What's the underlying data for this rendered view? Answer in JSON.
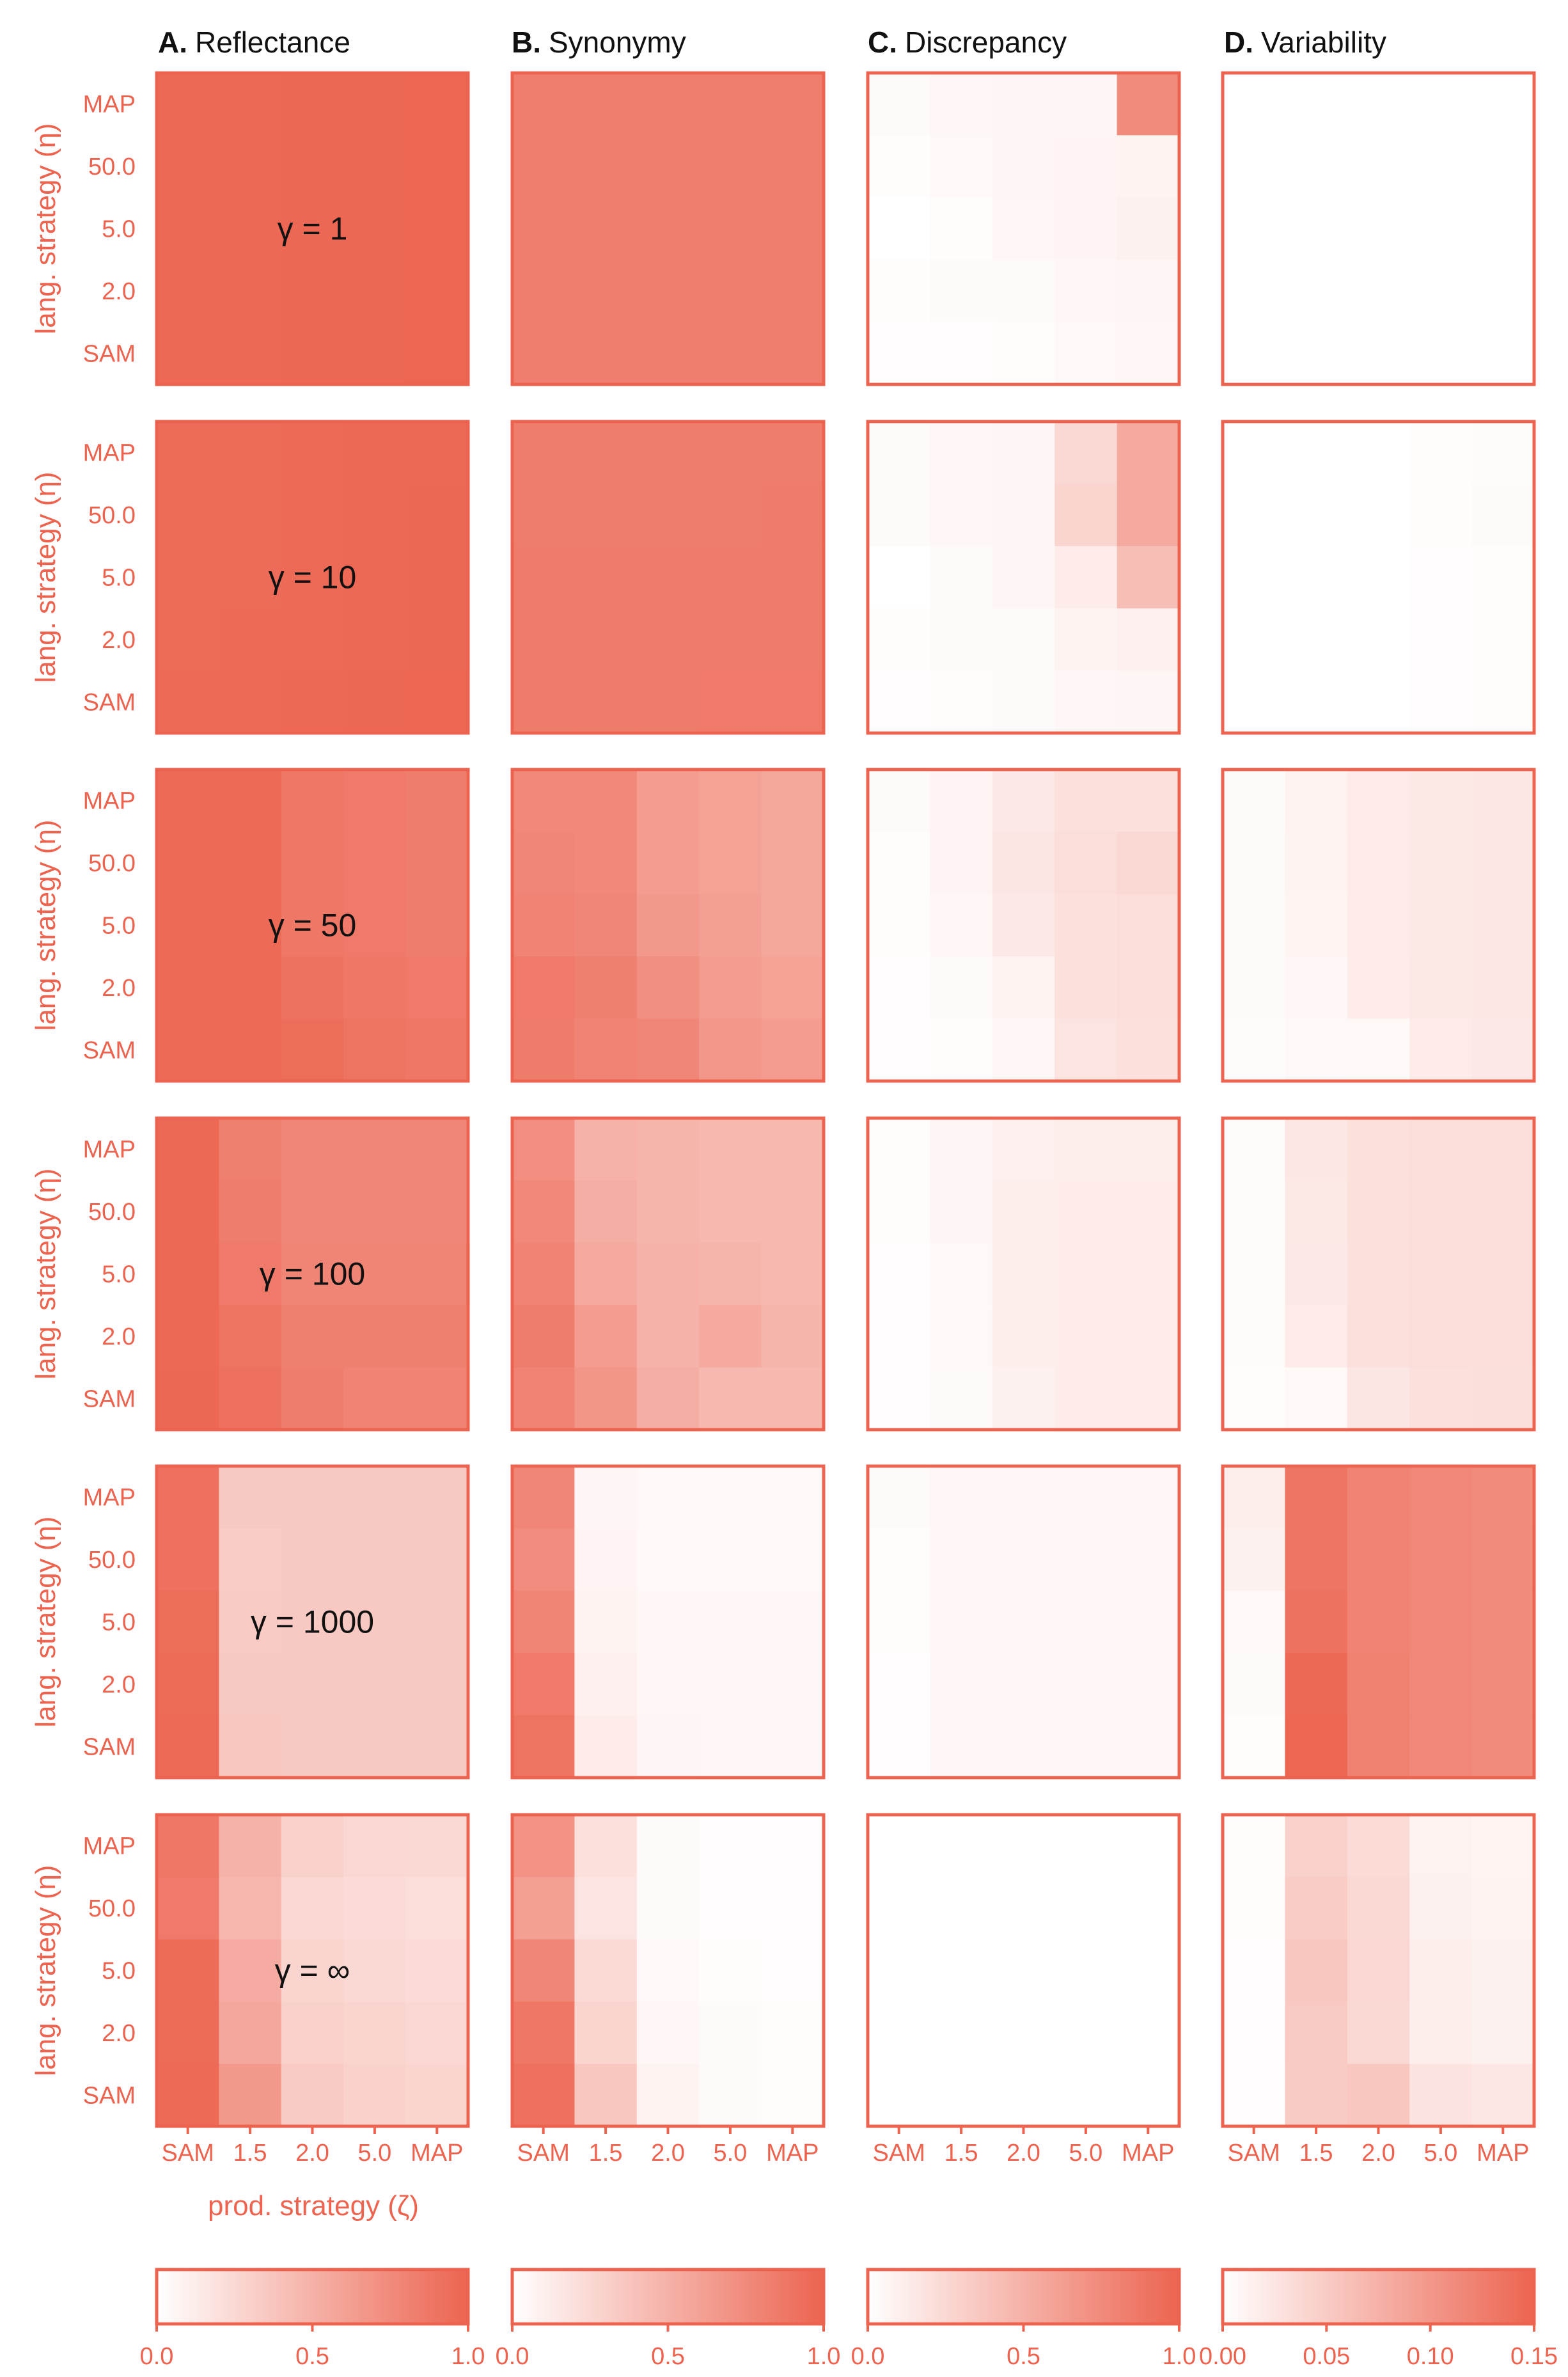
{
  "colors": {
    "accent": "#ec6450",
    "text": "#111111",
    "background": "#ffffff"
  },
  "chart_data": {
    "type": "heatmap",
    "columns": [
      {
        "letter": "A.",
        "title": "Reflectance",
        "vmin": 0,
        "vmax": 1,
        "colorbar_ticks": [
          "0.0",
          "0.5",
          "1.0"
        ]
      },
      {
        "letter": "B.",
        "title": "Synonymy",
        "vmin": 0,
        "vmax": 1,
        "colorbar_ticks": [
          "0.0",
          "0.5",
          "1.0"
        ]
      },
      {
        "letter": "C.",
        "title": "Discrepancy",
        "vmin": 0,
        "vmax": 1,
        "colorbar_ticks": [
          "0.0",
          "0.5",
          "1.0"
        ]
      },
      {
        "letter": "D.",
        "title": "Variability",
        "vmin": 0,
        "vmax": 0.15,
        "colorbar_ticks": [
          "0.00",
          "0.05",
          "0.10",
          "0.15"
        ]
      }
    ],
    "rows": [
      {
        "gamma_label": "γ = 1"
      },
      {
        "gamma_label": "γ = 10"
      },
      {
        "gamma_label": "γ = 50"
      },
      {
        "gamma_label": "γ = 100"
      },
      {
        "gamma_label": "γ = 1000"
      },
      {
        "gamma_label": "γ = ∞"
      }
    ],
    "y_ticks": [
      "MAP",
      "50.0",
      "5.0",
      "2.0",
      "SAM"
    ],
    "x_ticks": [
      "SAM",
      "1.5",
      "2.0",
      "5.0",
      "MAP"
    ],
    "ylabel": "lang. strategy (η)",
    "xlabel": "prod. strategy (ζ)",
    "values": [
      [
        [
          [
            0.97,
            0.97,
            0.98,
            0.98,
            0.99
          ],
          [
            0.97,
            0.97,
            0.98,
            0.98,
            0.99
          ],
          [
            0.97,
            0.97,
            0.98,
            0.98,
            0.99
          ],
          [
            0.97,
            0.97,
            0.98,
            0.98,
            0.99
          ],
          [
            0.97,
            0.97,
            0.98,
            0.98,
            0.99
          ]
        ],
        [
          [
            0.83,
            0.83,
            0.83,
            0.83,
            0.83
          ],
          [
            0.83,
            0.83,
            0.83,
            0.83,
            0.83
          ],
          [
            0.83,
            0.83,
            0.83,
            0.83,
            0.83
          ],
          [
            0.83,
            0.83,
            0.83,
            0.83,
            0.83
          ],
          [
            0.83,
            0.83,
            0.83,
            0.83,
            0.83
          ]
        ],
        [
          [
            0.03,
            0.05,
            0.06,
            0.06,
            0.75
          ],
          [
            0.02,
            0.04,
            0.06,
            0.07,
            0.08
          ],
          [
            0.0,
            0.02,
            0.05,
            0.07,
            0.09
          ],
          [
            0.02,
            0.03,
            0.03,
            0.05,
            0.06
          ],
          [
            0.01,
            0.01,
            0.02,
            0.04,
            0.05
          ]
        ],
        [
          [
            0,
            0,
            0,
            0,
            0
          ],
          [
            0,
            0,
            0,
            0,
            0
          ],
          [
            0,
            0,
            0,
            0,
            0
          ],
          [
            0,
            0,
            0,
            0,
            0
          ],
          [
            0,
            0,
            0,
            0,
            0
          ]
        ]
      ],
      [
        [
          [
            0.95,
            0.95,
            0.96,
            0.97,
            0.97
          ],
          [
            0.95,
            0.95,
            0.96,
            0.97,
            0.98
          ],
          [
            0.95,
            0.95,
            0.96,
            0.97,
            0.98
          ],
          [
            0.95,
            0.96,
            0.96,
            0.97,
            0.98
          ],
          [
            0.96,
            0.96,
            0.97,
            0.98,
            0.99
          ]
        ],
        [
          [
            0.84,
            0.84,
            0.84,
            0.84,
            0.84
          ],
          [
            0.84,
            0.84,
            0.84,
            0.84,
            0.85
          ],
          [
            0.85,
            0.85,
            0.85,
            0.85,
            0.85
          ],
          [
            0.85,
            0.85,
            0.85,
            0.85,
            0.85
          ],
          [
            0.85,
            0.85,
            0.85,
            0.86,
            0.86
          ]
        ],
        [
          [
            0.03,
            0.05,
            0.06,
            0.25,
            0.55
          ],
          [
            0.03,
            0.05,
            0.06,
            0.27,
            0.55
          ],
          [
            0.0,
            0.03,
            0.06,
            0.12,
            0.42
          ],
          [
            0.02,
            0.03,
            0.03,
            0.08,
            0.1
          ],
          [
            0.01,
            0.02,
            0.03,
            0.05,
            0.06
          ]
        ],
        [
          [
            0.0,
            0.0,
            0.0,
            0.003,
            0.004
          ],
          [
            0.0,
            0.0,
            0.0,
            0.003,
            0.005
          ],
          [
            0.0,
            0.0,
            0.0,
            0.002,
            0.003
          ],
          [
            0.0,
            0.0,
            0.0,
            0.002,
            0.003
          ],
          [
            0.0,
            0.0,
            0.0,
            0.002,
            0.003
          ]
        ]
      ],
      [
        [
          [
            0.96,
            0.96,
            0.88,
            0.86,
            0.84
          ],
          [
            0.96,
            0.96,
            0.88,
            0.86,
            0.84
          ],
          [
            0.96,
            0.96,
            0.88,
            0.86,
            0.84
          ],
          [
            0.96,
            0.96,
            0.91,
            0.88,
            0.86
          ],
          [
            0.96,
            0.96,
            0.94,
            0.9,
            0.88
          ]
        ],
        [
          [
            0.76,
            0.76,
            0.64,
            0.6,
            0.57
          ],
          [
            0.78,
            0.76,
            0.64,
            0.6,
            0.57
          ],
          [
            0.8,
            0.78,
            0.66,
            0.62,
            0.57
          ],
          [
            0.86,
            0.82,
            0.72,
            0.64,
            0.6
          ],
          [
            0.85,
            0.8,
            0.78,
            0.67,
            0.64
          ]
        ],
        [
          [
            0.03,
            0.07,
            0.14,
            0.2,
            0.2
          ],
          [
            0.02,
            0.07,
            0.16,
            0.22,
            0.25
          ],
          [
            0.02,
            0.05,
            0.14,
            0.2,
            0.22
          ],
          [
            0.01,
            0.03,
            0.08,
            0.2,
            0.22
          ],
          [
            0.01,
            0.02,
            0.05,
            0.17,
            0.2
          ]
        ],
        [
          [
            0.005,
            0.013,
            0.019,
            0.022,
            0.023
          ],
          [
            0.005,
            0.012,
            0.019,
            0.022,
            0.023
          ],
          [
            0.005,
            0.01,
            0.019,
            0.022,
            0.023
          ],
          [
            0.005,
            0.008,
            0.018,
            0.022,
            0.023
          ],
          [
            0.004,
            0.006,
            0.007,
            0.019,
            0.021
          ]
        ]
      ],
      [
        [
          [
            0.97,
            0.82,
            0.78,
            0.78,
            0.78
          ],
          [
            0.97,
            0.84,
            0.78,
            0.78,
            0.78
          ],
          [
            0.97,
            0.86,
            0.79,
            0.79,
            0.79
          ],
          [
            0.97,
            0.9,
            0.82,
            0.82,
            0.82
          ],
          [
            0.98,
            0.92,
            0.84,
            0.8,
            0.8
          ]
        ],
        [
          [
            0.73,
            0.5,
            0.48,
            0.46,
            0.45
          ],
          [
            0.76,
            0.52,
            0.48,
            0.46,
            0.45
          ],
          [
            0.8,
            0.55,
            0.5,
            0.48,
            0.46
          ],
          [
            0.84,
            0.64,
            0.5,
            0.55,
            0.48
          ],
          [
            0.8,
            0.68,
            0.52,
            0.45,
            0.45
          ]
        ],
        [
          [
            0.02,
            0.06,
            0.1,
            0.11,
            0.11
          ],
          [
            0.02,
            0.06,
            0.11,
            0.12,
            0.12
          ],
          [
            0.01,
            0.04,
            0.11,
            0.12,
            0.12
          ],
          [
            0.01,
            0.04,
            0.11,
            0.12,
            0.12
          ],
          [
            0.01,
            0.03,
            0.09,
            0.12,
            0.12
          ]
        ],
        [
          [
            0.004,
            0.023,
            0.03,
            0.032,
            0.033
          ],
          [
            0.004,
            0.022,
            0.03,
            0.032,
            0.033
          ],
          [
            0.004,
            0.021,
            0.03,
            0.032,
            0.033
          ],
          [
            0.004,
            0.019,
            0.03,
            0.032,
            0.033
          ],
          [
            0.003,
            0.007,
            0.024,
            0.03,
            0.031
          ]
        ]
      ],
      [
        [
          [
            0.92,
            0.35,
            0.35,
            0.35,
            0.35
          ],
          [
            0.92,
            0.33,
            0.35,
            0.35,
            0.35
          ],
          [
            0.94,
            0.34,
            0.35,
            0.35,
            0.35
          ],
          [
            0.95,
            0.35,
            0.35,
            0.35,
            0.35
          ],
          [
            0.96,
            0.36,
            0.35,
            0.35,
            0.35
          ]
        ],
        [
          [
            0.78,
            0.06,
            0.04,
            0.04,
            0.04
          ],
          [
            0.74,
            0.07,
            0.04,
            0.04,
            0.04
          ],
          [
            0.79,
            0.08,
            0.05,
            0.05,
            0.05
          ],
          [
            0.86,
            0.1,
            0.05,
            0.05,
            0.05
          ],
          [
            0.9,
            0.12,
            0.06,
            0.05,
            0.05
          ]
        ],
        [
          [
            0.03,
            0.05,
            0.05,
            0.05,
            0.05
          ],
          [
            0.02,
            0.05,
            0.05,
            0.05,
            0.05
          ],
          [
            0.02,
            0.05,
            0.05,
            0.05,
            0.05
          ],
          [
            0.01,
            0.05,
            0.05,
            0.05,
            0.05
          ],
          [
            0.01,
            0.05,
            0.05,
            0.05,
            0.05
          ]
        ],
        [
          [
            0.016,
            0.134,
            0.12,
            0.116,
            0.112
          ],
          [
            0.014,
            0.134,
            0.12,
            0.116,
            0.112
          ],
          [
            0.006,
            0.136,
            0.12,
            0.116,
            0.112
          ],
          [
            0.005,
            0.146,
            0.122,
            0.116,
            0.112
          ],
          [
            0.003,
            0.148,
            0.122,
            0.116,
            0.112
          ]
        ]
      ],
      [
        [
          [
            0.88,
            0.5,
            0.3,
            0.26,
            0.25
          ],
          [
            0.86,
            0.47,
            0.26,
            0.23,
            0.22
          ],
          [
            0.95,
            0.54,
            0.28,
            0.25,
            0.23
          ],
          [
            0.95,
            0.56,
            0.3,
            0.27,
            0.26
          ],
          [
            0.96,
            0.66,
            0.34,
            0.29,
            0.27
          ]
        ],
        [
          [
            0.7,
            0.2,
            0.03,
            0.01,
            0.01
          ],
          [
            0.62,
            0.17,
            0.03,
            0.01,
            0.01
          ],
          [
            0.78,
            0.24,
            0.04,
            0.02,
            0.01
          ],
          [
            0.88,
            0.28,
            0.05,
            0.03,
            0.02
          ],
          [
            0.92,
            0.36,
            0.08,
            0.03,
            0.02
          ]
        ],
        [
          [
            0,
            0,
            0,
            0,
            0
          ],
          [
            0,
            0,
            0,
            0,
            0
          ],
          [
            0,
            0,
            0,
            0,
            0
          ],
          [
            0,
            0,
            0,
            0,
            0
          ],
          [
            0,
            0,
            0,
            0,
            0
          ]
        ],
        [
          [
            0.003,
            0.045,
            0.035,
            0.013,
            0.011
          ],
          [
            0.003,
            0.049,
            0.037,
            0.014,
            0.012
          ],
          [
            0.002,
            0.054,
            0.039,
            0.016,
            0.014
          ],
          [
            0.002,
            0.051,
            0.037,
            0.016,
            0.014
          ],
          [
            0.002,
            0.05,
            0.054,
            0.027,
            0.023
          ]
        ]
      ]
    ]
  }
}
